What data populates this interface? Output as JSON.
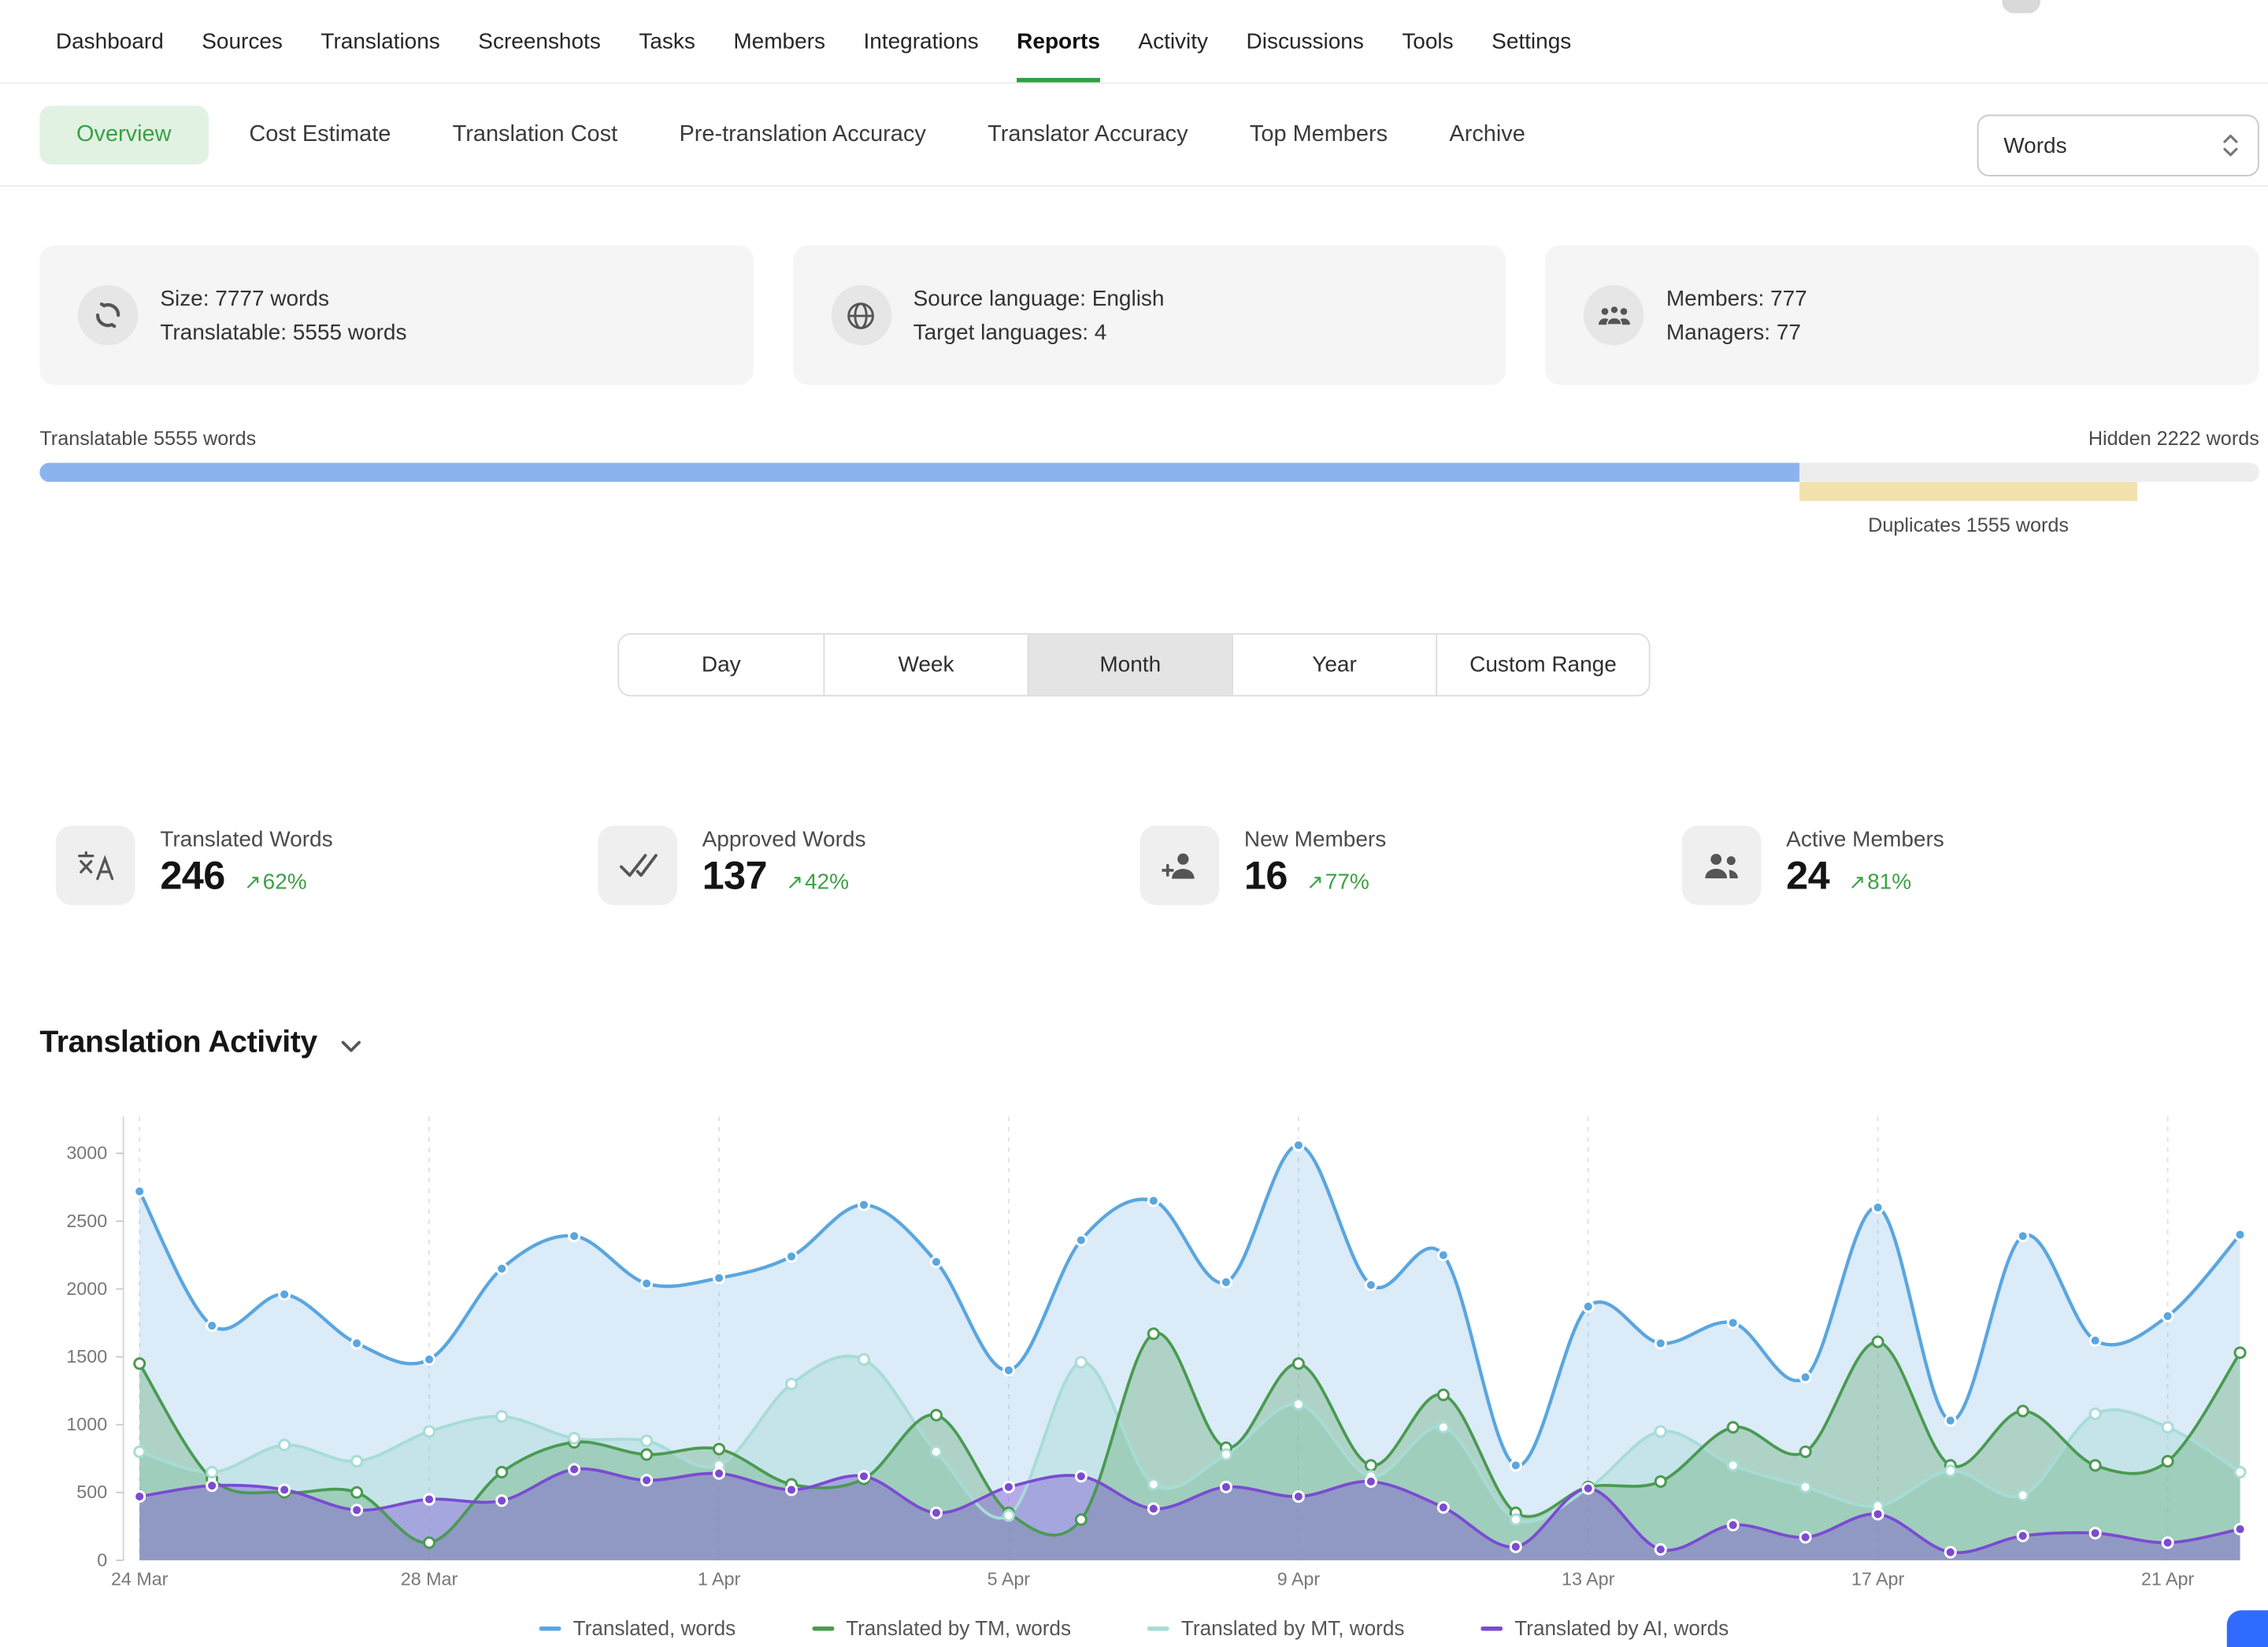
{
  "theme": {
    "accent_green": "#38a243",
    "delta_green": "#3ea044"
  },
  "icons": {
    "delta_up": "↗"
  },
  "topnav": {
    "items": [
      {
        "label": "Dashboard"
      },
      {
        "label": "Sources"
      },
      {
        "label": "Translations"
      },
      {
        "label": "Screenshots"
      },
      {
        "label": "Tasks"
      },
      {
        "label": "Members"
      },
      {
        "label": "Integrations"
      },
      {
        "label": "Reports",
        "active": true
      },
      {
        "label": "Activity"
      },
      {
        "label": "Discussions"
      },
      {
        "label": "Tools"
      },
      {
        "label": "Settings"
      }
    ]
  },
  "tabs": {
    "items": [
      "Overview",
      "Cost Estimate",
      "Translation Cost",
      "Pre-translation Accuracy",
      "Translator Accuracy",
      "Top Members",
      "Archive"
    ],
    "active": "Overview",
    "unit_select": {
      "value": "Words"
    }
  },
  "info_cards": [
    {
      "icon": "progress-circle-icon",
      "lines": [
        "Size: 7777 words",
        "Translatable: 5555 words"
      ]
    },
    {
      "icon": "globe-icon",
      "lines": [
        "Source language: English",
        "Target languages: 4"
      ]
    },
    {
      "icon": "members-group-icon",
      "lines": [
        "Members: 777",
        "Managers: 77"
      ]
    }
  ],
  "progress": {
    "left_label": "Translatable 5555 words",
    "right_label": "Hidden 2222 words",
    "duplicates_label": "Duplicates 1555 words",
    "translatable_pct": 79.3,
    "duplicates_start_pct": 79.3,
    "duplicates_width_pct": 15.2,
    "colors": {
      "translatable": "#8bb4ef",
      "duplicates": "#f3e2ae",
      "track": "#ededed"
    }
  },
  "range_selector": {
    "options": [
      "Day",
      "Week",
      "Month",
      "Year",
      "Custom Range"
    ],
    "selected": "Month"
  },
  "stats": [
    {
      "icon": "translate-icon",
      "label": "Translated Words",
      "value": "246",
      "delta": "62%"
    },
    {
      "icon": "double-check-icon",
      "label": "Approved Words",
      "value": "137",
      "delta": "42%"
    },
    {
      "icon": "add-member-icon",
      "label": "New Members",
      "value": "16",
      "delta": "77%"
    },
    {
      "icon": "two-members-icon",
      "label": "Active Members",
      "value": "24",
      "delta": "81%"
    }
  ],
  "activity": {
    "title": "Translation Activity"
  },
  "chart_data": {
    "type": "area",
    "title": "Translation Activity",
    "n_points": 30,
    "x_start": "24 Mar",
    "x_end": "22 Apr",
    "x_tick_labels": [
      "24 Mar",
      "28 Mar",
      "1 Apr",
      "5 Apr",
      "9 Apr",
      "13 Apr",
      "17 Apr",
      "21 Apr"
    ],
    "x_tick_indices": [
      0,
      4,
      8,
      12,
      16,
      20,
      24,
      28
    ],
    "ylim": [
      0,
      3000
    ],
    "y_ticks": [
      0,
      500,
      1000,
      1500,
      2000,
      2500,
      3000
    ],
    "grid": "vertical-dashed",
    "legend_position": "bottom",
    "series": [
      {
        "name": "Translated, words",
        "color": "#5aa6df",
        "marker": "filled",
        "values": [
          2720,
          1730,
          1960,
          1600,
          1480,
          2150,
          2390,
          2040,
          2080,
          2240,
          2620,
          2200,
          1400,
          2360,
          2650,
          2050,
          3060,
          2030,
          2250,
          700,
          1870,
          1600,
          1750,
          1350,
          2600,
          1030,
          2390,
          1620,
          1800,
          2400
        ]
      },
      {
        "name": "Translated by TM, words",
        "color": "#4a9a52",
        "marker": "open",
        "values": [
          1450,
          600,
          500,
          500,
          130,
          650,
          870,
          780,
          820,
          560,
          600,
          1070,
          350,
          300,
          1670,
          830,
          1450,
          700,
          1220,
          350,
          540,
          580,
          980,
          800,
          1610,
          700,
          1100,
          700,
          730,
          1530
        ]
      },
      {
        "name": "Translated by MT, words",
        "color": "#a7dcd6",
        "marker": "open",
        "values": [
          800,
          650,
          850,
          730,
          950,
          1060,
          900,
          880,
          700,
          1300,
          1480,
          800,
          330,
          1460,
          560,
          780,
          1150,
          620,
          980,
          300,
          530,
          950,
          700,
          540,
          400,
          660,
          480,
          1080,
          980,
          650
        ]
      },
      {
        "name": "Translated by AI, words",
        "color": "#7b4bd1",
        "marker": "filled",
        "values": [
          470,
          550,
          520,
          370,
          450,
          440,
          670,
          590,
          640,
          520,
          620,
          350,
          540,
          620,
          380,
          540,
          470,
          580,
          390,
          100,
          530,
          80,
          260,
          170,
          340,
          60,
          180,
          200,
          130,
          230
        ]
      }
    ]
  }
}
